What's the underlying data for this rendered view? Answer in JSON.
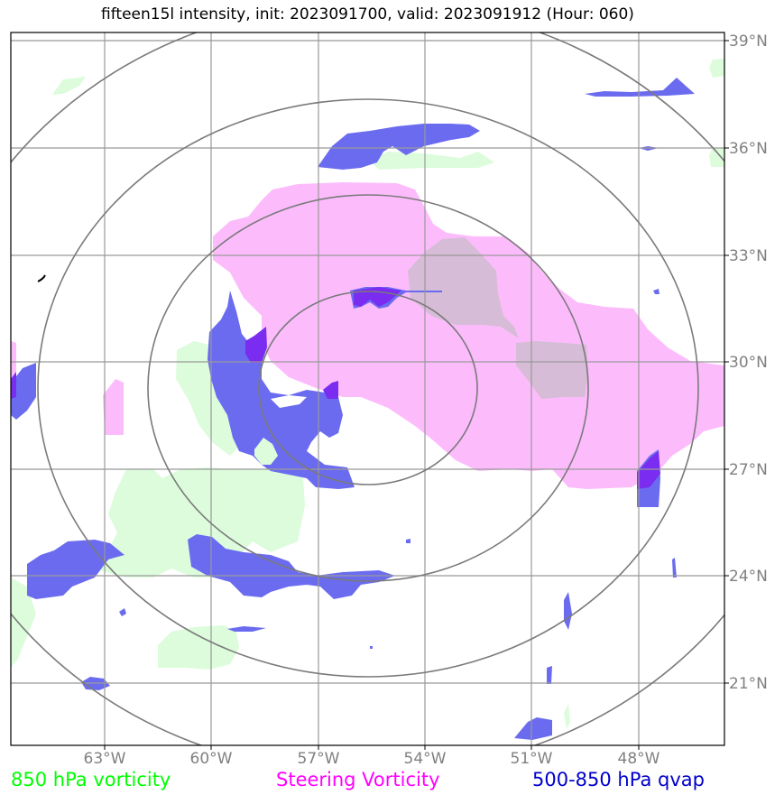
{
  "title": "fifteen15l intensity, init: 2023091700, valid: 2023091912 (Hour: 060)",
  "map": {
    "lon_labels": [
      "63°W",
      "60°W",
      "57°W",
      "54°W",
      "51°W",
      "48°W"
    ],
    "lat_labels": [
      "39°N",
      "36°N",
      "33°N",
      "30°N",
      "27°N",
      "24°N",
      "21°N"
    ],
    "grid_color": "#999999",
    "ring_color": "#7a7a7a",
    "lon_range": [
      -65.5,
      -45.5
    ],
    "lat_range": [
      19.0,
      39.5
    ]
  },
  "legend": [
    {
      "label": "850 hPa vorticity",
      "color": "#00ff00"
    },
    {
      "label": "Steering Vorticity",
      "color": "#ff00ff"
    },
    {
      "label": "500-850 hPa qvap",
      "color": "#0000cc"
    }
  ],
  "colors": {
    "vorticity_fill": "#dcfcdc",
    "steering_fill": "#fcbcfc",
    "qvap_fill": "#6b6bf0",
    "qvap_core": "#7a2cf0",
    "overlap_fill": "#d6bcd6"
  }
}
